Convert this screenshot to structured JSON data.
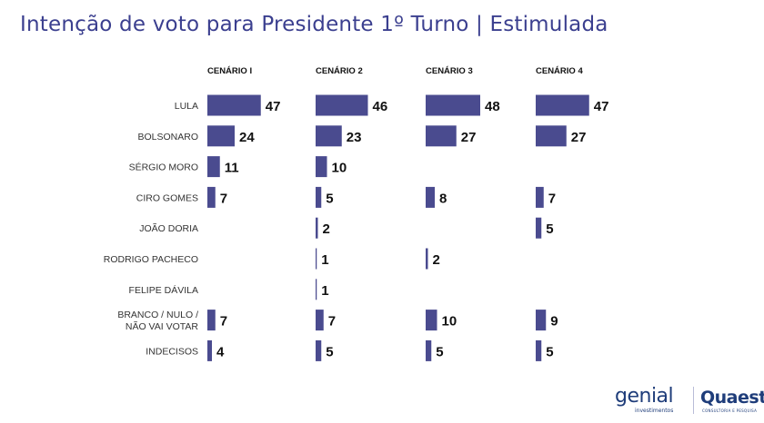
{
  "title": "Intenção de voto para Presidente 1º Turno | Estimulada",
  "chart_data": {
    "type": "bar",
    "orientation": "horizontal",
    "title": "Intenção de voto para Presidente 1º Turno | Estimulada",
    "categories": [
      [
        "LULA"
      ],
      [
        "BOLSONARO"
      ],
      [
        "SÉRGIO MORO"
      ],
      [
        "CIRO GOMES"
      ],
      [
        "JOÃO DORIA"
      ],
      [
        "RODRIGO PACHECO"
      ],
      [
        "FELIPE DÁVILA"
      ],
      [
        "BRANCO / NULO /",
        "NÃO VAI VOTAR"
      ],
      [
        "INDECISOS"
      ]
    ],
    "series": [
      {
        "name": "CENÁRIO I",
        "values": [
          47,
          24,
          11,
          7,
          null,
          null,
          null,
          7,
          4
        ]
      },
      {
        "name": "CENÁRIO 2",
        "values": [
          46,
          23,
          10,
          5,
          2,
          1,
          1,
          7,
          5
        ]
      },
      {
        "name": "CENÁRIO 3",
        "values": [
          48,
          27,
          null,
          8,
          null,
          2,
          null,
          10,
          5
        ]
      },
      {
        "name": "CENÁRIO 4",
        "values": [
          47,
          27,
          null,
          7,
          5,
          null,
          null,
          9,
          5
        ]
      }
    ],
    "bar_color": "#4a4b8f",
    "grid": false,
    "legend": "column headers"
  },
  "logos": {
    "genial": "genial",
    "genial_sub": "investimentos",
    "quaest": "Quaest",
    "quaest_sub": "CONSULTORIA E PESQUISA"
  }
}
